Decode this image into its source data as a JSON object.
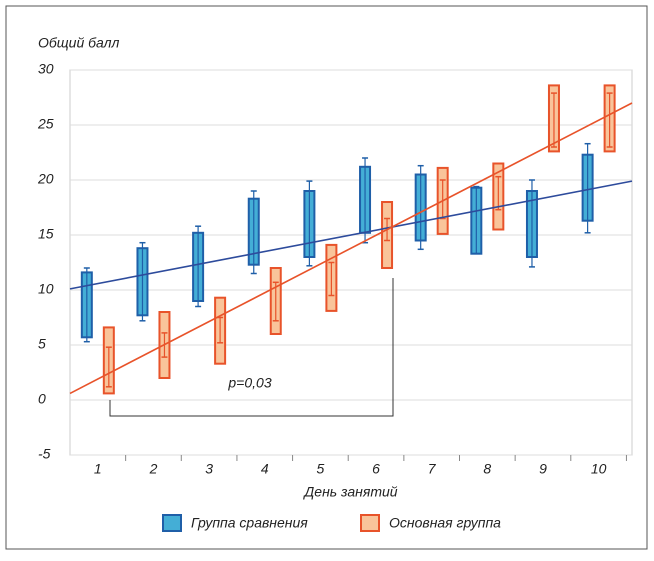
{
  "chart_data": {
    "type": "box",
    "y_label": "Общий балл",
    "x_label": "День занятий",
    "annotation": "p=0,03",
    "x": [
      1,
      2,
      3,
      4,
      5,
      6,
      7,
      8,
      9,
      10
    ],
    "xlim": [
      0.5,
      10.6
    ],
    "xticks": [
      1,
      2,
      3,
      4,
      5,
      6,
      7,
      8,
      9,
      10
    ],
    "ylim": [
      -5,
      30
    ],
    "yticks": [
      -5,
      0,
      5,
      10,
      15,
      20,
      25,
      30
    ],
    "grid": true,
    "legend": "bottom",
    "series": [
      {
        "name": "Группа сравнения",
        "color": "#1f5fa8",
        "fill": "#44aed6",
        "trend_color": "#2d4b9c",
        "box_low": [
          5.7,
          7.7,
          9,
          12.3,
          13,
          15.2,
          14.5,
          13.3,
          13,
          16.3
        ],
        "box_high": [
          11.6,
          13.8,
          15.2,
          18.3,
          19,
          21.2,
          20.5,
          19.3,
          19,
          22.3
        ],
        "whisker_low": [
          5.3,
          7.2,
          8.5,
          11.5,
          12.2,
          14.3,
          13.7,
          13.3,
          12.1,
          15.2
        ],
        "whisker_high": [
          12,
          14.3,
          15.8,
          19,
          19.9,
          22,
          21.3,
          19.4,
          20,
          23.3
        ],
        "trend": {
          "x": [
            0.5,
            10.6
          ],
          "y": [
            10.1,
            19.9
          ]
        }
      },
      {
        "name": "Основная группа",
        "color": "#e8532a",
        "fill": "#f9c49a",
        "trend_color": "#e8532a",
        "box_low": [
          0.6,
          2,
          3.3,
          6,
          8.1,
          12,
          15.1,
          15.5,
          22.6,
          22.6
        ],
        "box_high": [
          6.6,
          8,
          9.3,
          12,
          14.1,
          18,
          21.1,
          21.5,
          28.6,
          28.6
        ],
        "whisker_low": [
          1.2,
          3.9,
          5.2,
          7.2,
          9.5,
          14.5,
          16.5,
          17.3,
          23,
          23
        ],
        "whisker_high": [
          4.8,
          6.1,
          7.5,
          10.7,
          12.5,
          16.5,
          20,
          20.3,
          27.9,
          27.9
        ],
        "trend": {
          "x": [
            0.5,
            10.6
          ],
          "y": [
            0.6,
            27
          ]
        }
      }
    ]
  }
}
